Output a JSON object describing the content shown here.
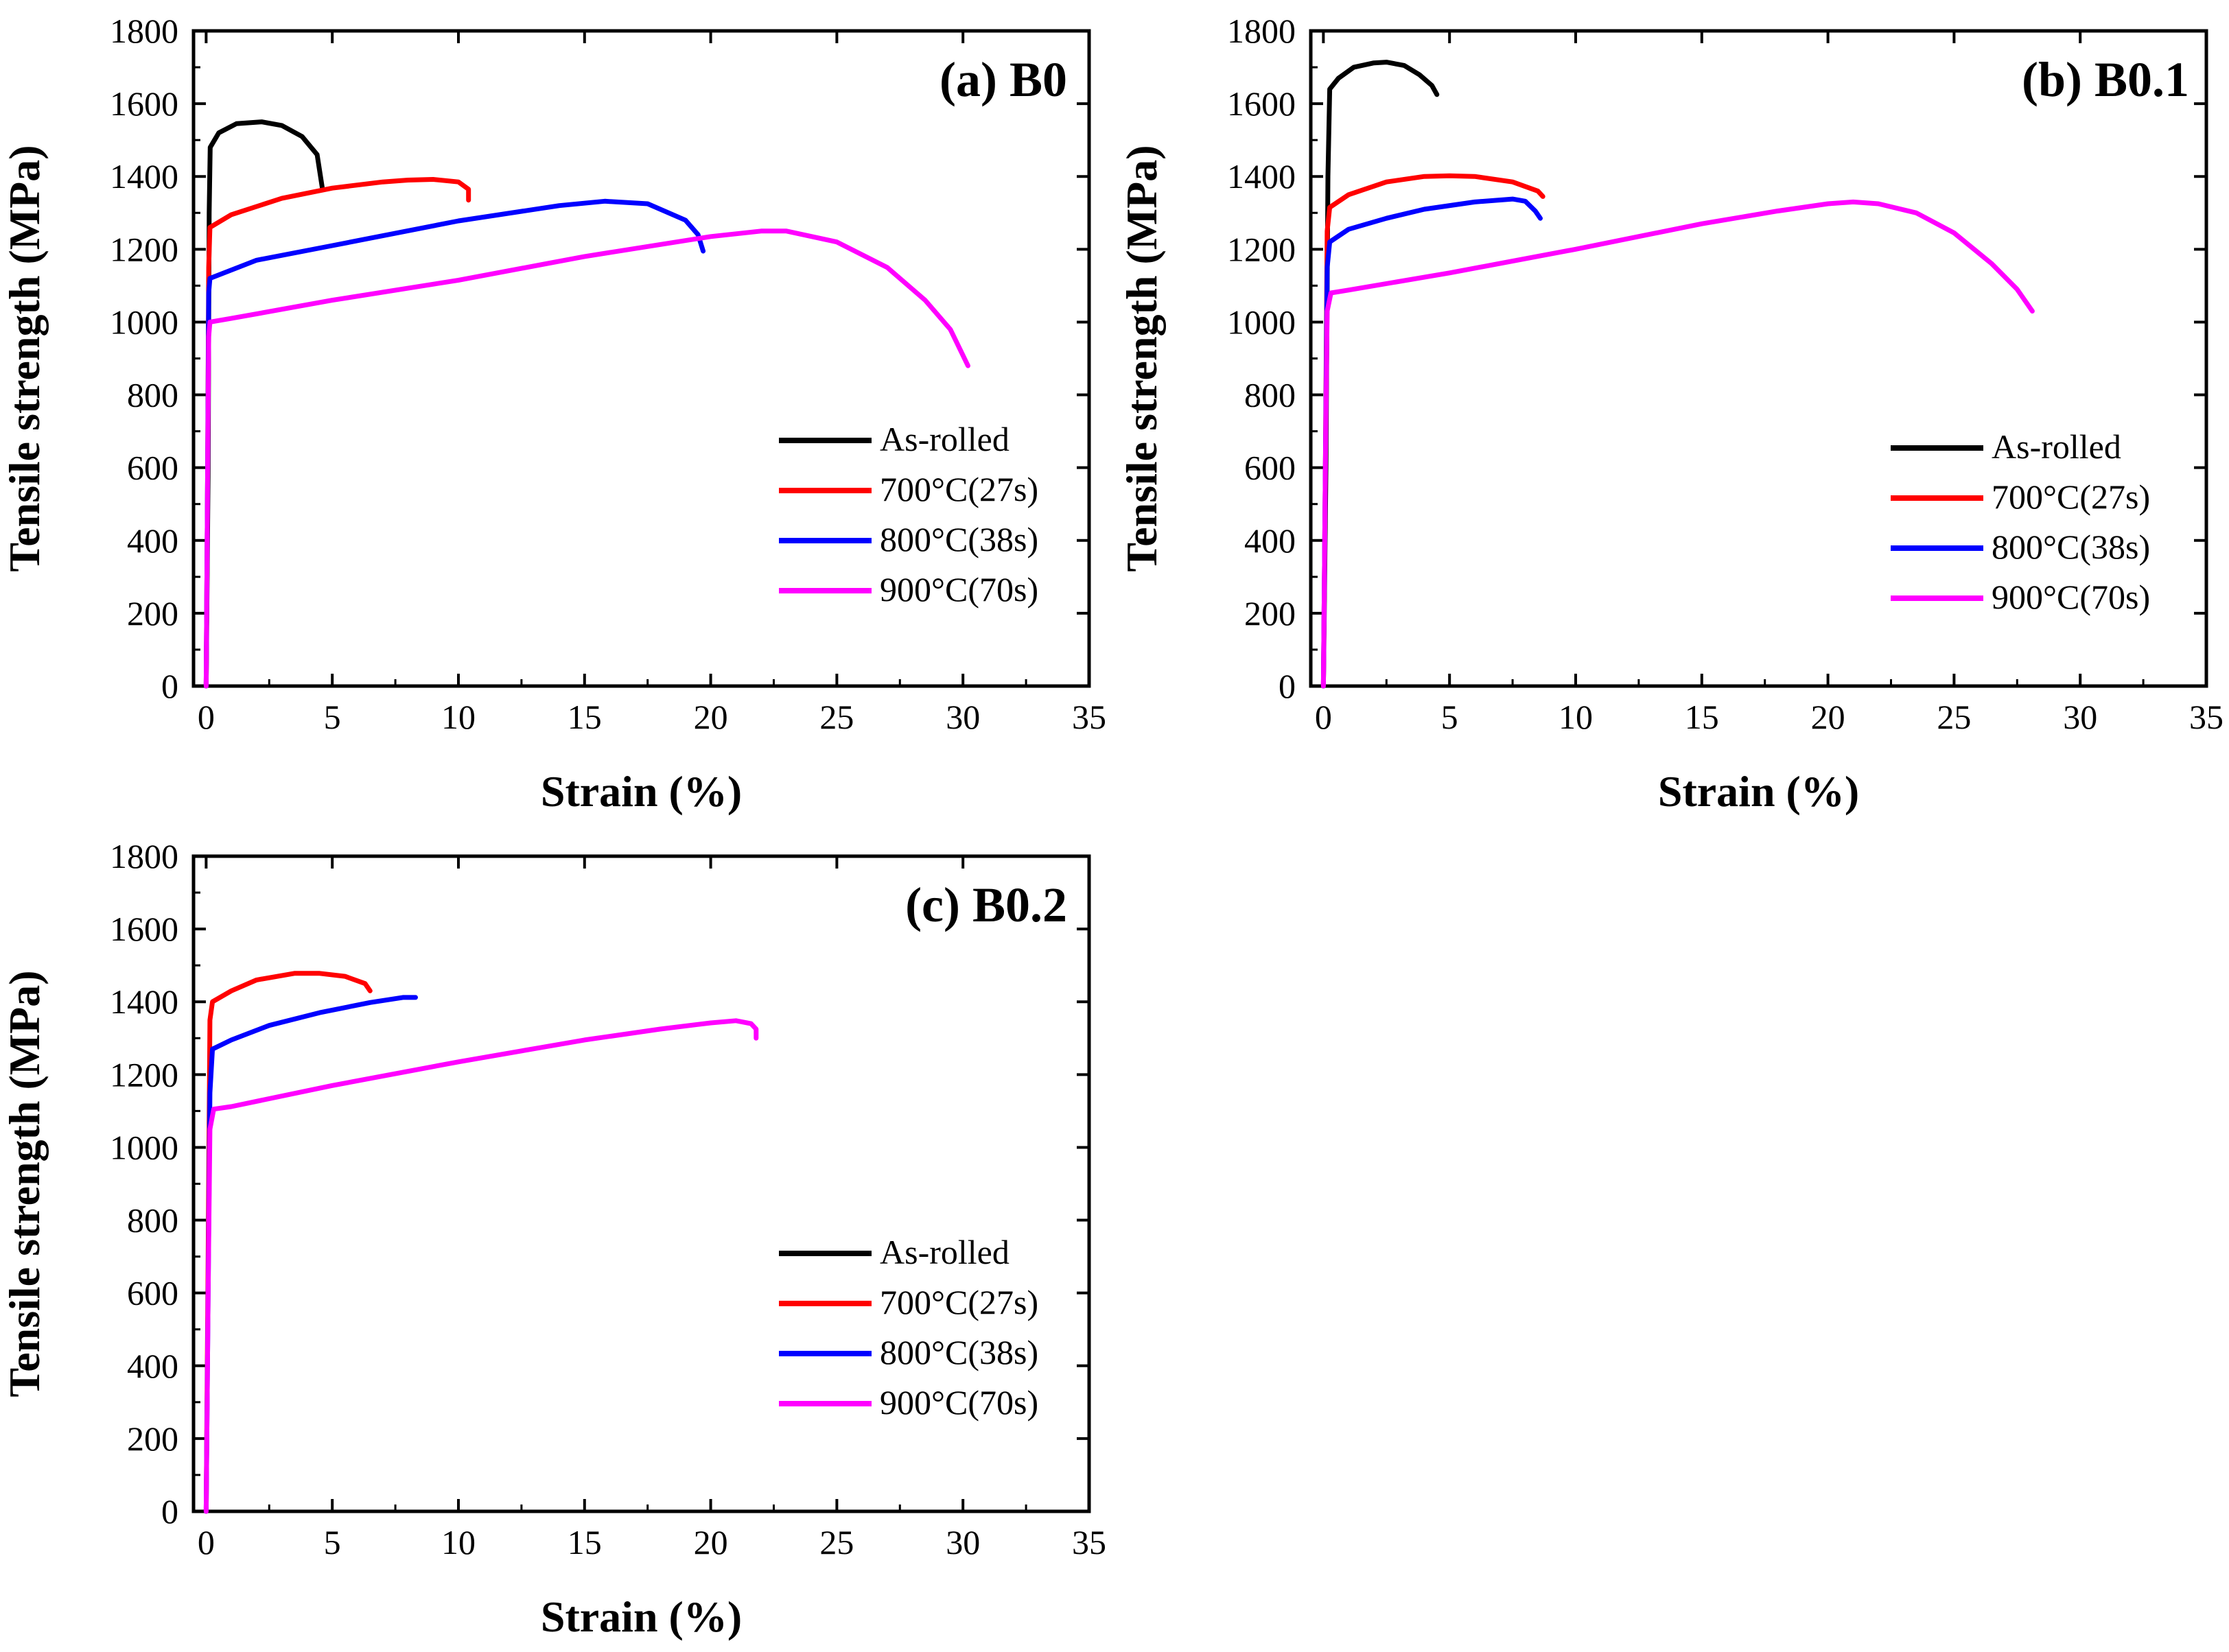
{
  "figure": {
    "colors": {
      "As-rolled": "#000000",
      "700°C(27s)": "#ff0000",
      "800°C(38s)": "#0000ff",
      "900°C(70s)": "#ff00ff"
    }
  },
  "chart_data": [
    {
      "type": "line",
      "title": "(a) B0",
      "xlabel": "Strain (%)",
      "ylabel": "Tensile strength (MPa)",
      "xlim": [
        -0.5,
        35
      ],
      "ylim": [
        0,
        1800
      ],
      "xticks": [
        0,
        5,
        10,
        15,
        20,
        25,
        30,
        35
      ],
      "yticks": [
        0,
        200,
        400,
        600,
        800,
        1000,
        1200,
        1400,
        1600,
        1800
      ],
      "legend_position": "right-middle",
      "series": [
        {
          "name": "As-rolled",
          "x": [
            0,
            0.08,
            0.12,
            0.16,
            0.5,
            1.2,
            2.2,
            3.0,
            3.8,
            4.4,
            4.6
          ],
          "y": [
            0,
            600,
            1300,
            1480,
            1520,
            1545,
            1550,
            1540,
            1510,
            1460,
            1370
          ]
        },
        {
          "name": "700°C(27s)",
          "x": [
            0,
            0.06,
            0.1,
            0.15,
            1,
            3,
            5,
            7,
            8,
            9,
            10,
            10.4,
            10.4
          ],
          "y": [
            0,
            600,
            1150,
            1260,
            1295,
            1340,
            1368,
            1385,
            1390,
            1392,
            1385,
            1365,
            1335
          ]
        },
        {
          "name": "800°C(38s)",
          "x": [
            0,
            0.06,
            0.1,
            0.15,
            2,
            5,
            10,
            14,
            15.8,
            17.5,
            19,
            19.5,
            19.7
          ],
          "y": [
            0,
            600,
            1080,
            1120,
            1170,
            1210,
            1278,
            1320,
            1332,
            1325,
            1280,
            1240,
            1195
          ]
        },
        {
          "name": "900°C(70s)",
          "x": [
            0,
            0.06,
            0.1,
            0.15,
            1,
            5,
            10,
            15,
            20,
            22,
            23,
            25,
            27,
            28.5,
            29.5,
            30.2
          ],
          "y": [
            0,
            600,
            960,
            1000,
            1010,
            1060,
            1115,
            1180,
            1235,
            1250,
            1250,
            1220,
            1150,
            1060,
            980,
            880
          ]
        }
      ]
    },
    {
      "type": "line",
      "title": "(b) B0.1",
      "xlabel": "Strain (%)",
      "ylabel": "Tensile strength (MPa)",
      "xlim": [
        -0.5,
        35
      ],
      "ylim": [
        0,
        1800
      ],
      "xticks": [
        0,
        5,
        10,
        15,
        20,
        25,
        30,
        35
      ],
      "yticks": [
        0,
        200,
        400,
        600,
        800,
        1000,
        1200,
        1400,
        1600,
        1800
      ],
      "legend_position": "right-middle",
      "series": [
        {
          "name": "As-rolled",
          "x": [
            0,
            0.1,
            0.18,
            0.25,
            0.6,
            1.2,
            2.0,
            2.5,
            3.2,
            3.8,
            4.3,
            4.5
          ],
          "y": [
            0,
            600,
            1400,
            1640,
            1670,
            1700,
            1712,
            1714,
            1705,
            1680,
            1650,
            1625
          ]
        },
        {
          "name": "700°C(27s)",
          "x": [
            0,
            0.08,
            0.15,
            0.25,
            1,
            2.5,
            4,
            5,
            6,
            7.5,
            8.5,
            8.7
          ],
          "y": [
            0,
            600,
            1250,
            1315,
            1350,
            1385,
            1400,
            1402,
            1400,
            1385,
            1360,
            1345
          ]
        },
        {
          "name": "800°C(38s)",
          "x": [
            0,
            0.08,
            0.15,
            0.25,
            1,
            2.5,
            4,
            6,
            7.5,
            8,
            8.4,
            8.6
          ],
          "y": [
            0,
            600,
            1150,
            1220,
            1255,
            1285,
            1310,
            1330,
            1338,
            1332,
            1305,
            1285
          ]
        },
        {
          "name": "900°C(70s)",
          "x": [
            0,
            0.08,
            0.15,
            0.3,
            1,
            5,
            10,
            15,
            18,
            20,
            21,
            22,
            23.5,
            25,
            26.5,
            27.5,
            28.1
          ],
          "y": [
            0,
            600,
            1030,
            1080,
            1088,
            1135,
            1200,
            1270,
            1305,
            1325,
            1330,
            1325,
            1300,
            1245,
            1160,
            1090,
            1030
          ]
        }
      ]
    },
    {
      "type": "line",
      "title": "(c) B0.2",
      "xlabel": "Strain (%)",
      "ylabel": "Tensile strength (MPa)",
      "xlim": [
        -0.5,
        35
      ],
      "ylim": [
        0,
        1800
      ],
      "xticks": [
        0,
        5,
        10,
        15,
        20,
        25,
        30,
        35
      ],
      "yticks": [
        0,
        200,
        400,
        600,
        800,
        1000,
        1200,
        1400,
        1600,
        1800
      ],
      "legend_position": "right-middle",
      "series": [
        {
          "name": "As-rolled",
          "x": [],
          "y": []
        },
        {
          "name": "700°C(27s)",
          "x": [
            0,
            0.08,
            0.15,
            0.25,
            1,
            2,
            3.5,
            4.5,
            5.5,
            6.3,
            6.5
          ],
          "y": [
            0,
            700,
            1350,
            1400,
            1430,
            1460,
            1478,
            1478,
            1470,
            1450,
            1430
          ]
        },
        {
          "name": "800°C(38s)",
          "x": [
            0,
            0.08,
            0.15,
            0.25,
            1,
            2.5,
            4.5,
            6.5,
            7.8,
            8.3
          ],
          "y": [
            0,
            600,
            1150,
            1270,
            1295,
            1335,
            1370,
            1398,
            1412,
            1412
          ]
        },
        {
          "name": "900°C(70s)",
          "x": [
            0,
            0.08,
            0.15,
            0.3,
            1,
            5,
            10,
            15,
            18,
            20,
            21,
            21.6,
            21.8,
            21.8
          ],
          "y": [
            0,
            600,
            1050,
            1105,
            1112,
            1170,
            1235,
            1295,
            1325,
            1342,
            1348,
            1340,
            1325,
            1300
          ]
        }
      ]
    }
  ]
}
